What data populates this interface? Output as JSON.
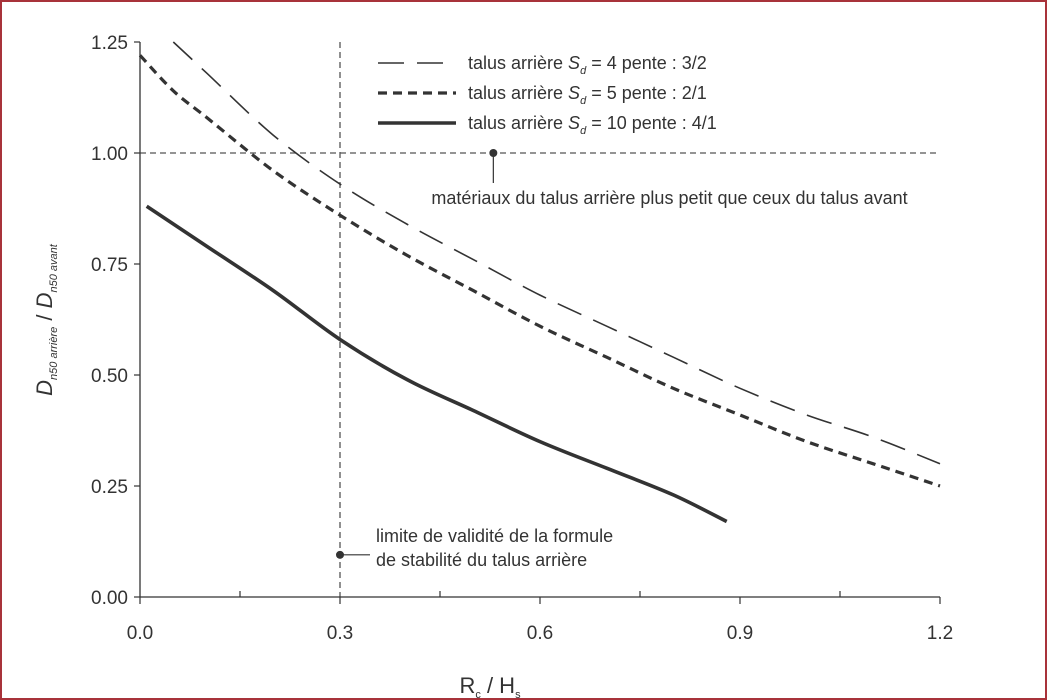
{
  "chart_data": {
    "type": "line",
    "xlabel": {
      "main": "R",
      "sub1": "c",
      "mid": " / H",
      "sub2": "s"
    },
    "ylabel": {
      "part1": "D",
      "sub1": "n50 arrière",
      "sep": " / ",
      "part2": "D",
      "sub2": "n50 avant"
    },
    "xlim": [
      0,
      1.2
    ],
    "ylim": [
      0,
      1.25
    ],
    "xticks": [
      0.0,
      0.3,
      0.6,
      0.9,
      1.2
    ],
    "xtick_labels": [
      "0.0",
      "0.3",
      "0.6",
      "0.9",
      "1.2"
    ],
    "xminor": [
      0.15,
      0.45,
      0.75,
      1.05
    ],
    "yticks": [
      0,
      0.25,
      0.5,
      0.75,
      1.0,
      1.25
    ],
    "ytick_labels": [
      "0.00",
      "0.25",
      "0.50",
      "0.75",
      "1.00",
      "1.25"
    ],
    "legend_position": "top-center",
    "series": [
      {
        "legend_prefix": "talus arrière ",
        "legend_var": "S",
        "legend_var_sub": "d",
        "legend_suffix": " = 4 pente : 3/2",
        "style": "long-dash",
        "x": [
          0.05,
          0.1,
          0.2,
          0.3,
          0.4,
          0.5,
          0.6,
          0.7,
          0.8,
          0.9,
          1.0,
          1.1,
          1.2
        ],
        "y": [
          1.25,
          1.18,
          1.04,
          0.93,
          0.84,
          0.76,
          0.68,
          0.61,
          0.54,
          0.47,
          0.41,
          0.36,
          0.3
        ]
      },
      {
        "legend_prefix": "talus arrière ",
        "legend_var": "S",
        "legend_var_sub": "d",
        "legend_suffix": " = 5 pente : 2/1",
        "style": "short-dash",
        "x": [
          0.0,
          0.05,
          0.1,
          0.2,
          0.3,
          0.4,
          0.5,
          0.6,
          0.7,
          0.8,
          0.9,
          1.0,
          1.1,
          1.2
        ],
        "y": [
          1.22,
          1.14,
          1.08,
          0.96,
          0.86,
          0.77,
          0.69,
          0.61,
          0.54,
          0.47,
          0.41,
          0.35,
          0.3,
          0.25
        ]
      },
      {
        "legend_prefix": "talus arrière ",
        "legend_var": "S",
        "legend_var_sub": "d",
        "legend_suffix": " = 10 pente : 4/1",
        "style": "solid",
        "x": [
          0.01,
          0.1,
          0.2,
          0.3,
          0.4,
          0.5,
          0.6,
          0.7,
          0.8,
          0.88
        ],
        "y": [
          0.88,
          0.79,
          0.69,
          0.58,
          0.49,
          0.42,
          0.35,
          0.29,
          0.23,
          0.17
        ]
      }
    ],
    "reference_lines": {
      "horizontal_y": 1.0,
      "vertical_x": 0.3
    },
    "annotations": [
      {
        "id": "materials",
        "text_lines": [
          "matériaux du talus arrière plus petit que ceux du talus avant"
        ],
        "point": [
          0.53,
          1.0
        ]
      },
      {
        "id": "validity",
        "text_lines": [
          "limite de validité de la formule",
          "de stabilité du talus arrière"
        ],
        "point": [
          0.3,
          0.095
        ]
      }
    ]
  },
  "colors": {
    "frame": "#a8323a",
    "axis": "#333333",
    "series": "#333333",
    "reference": "#555555"
  }
}
